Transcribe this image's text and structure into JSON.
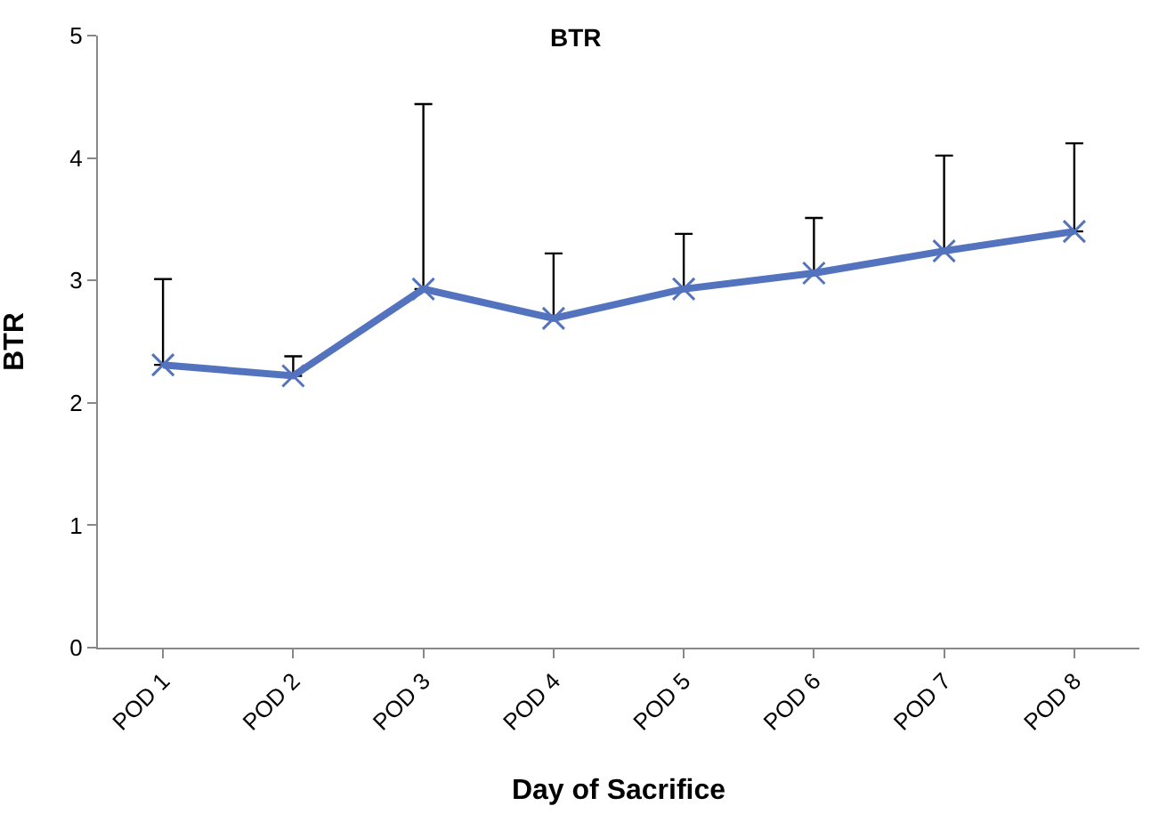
{
  "chart_data": {
    "type": "line",
    "title": "BTR",
    "xlabel": "Day of Sacrifice",
    "ylabel": "BTR",
    "categories": [
      "POD 1",
      "POD 2",
      "POD 3",
      "POD 4",
      "POD 5",
      "POD 6",
      "POD 7",
      "POD 8"
    ],
    "series": [
      {
        "color": "#5473be",
        "values": [
          2.31,
          2.22,
          2.93,
          2.69,
          2.93,
          3.06,
          3.24,
          3.4
        ],
        "errors": [
          [
            2.31,
            3.01
          ],
          [
            2.22,
            2.38
          ],
          [
            2.93,
            4.44
          ],
          [
            2.69,
            3.22
          ],
          [
            2.93,
            3.38
          ],
          [
            3.06,
            3.51
          ],
          [
            3.24,
            4.02
          ],
          [
            3.4,
            4.12
          ]
        ]
      }
    ],
    "ylim": [
      0,
      5
    ],
    "yticks": [
      0,
      1,
      2,
      3,
      4,
      5
    ],
    "grid": false,
    "marker": "cross",
    "line_style": "solid"
  }
}
